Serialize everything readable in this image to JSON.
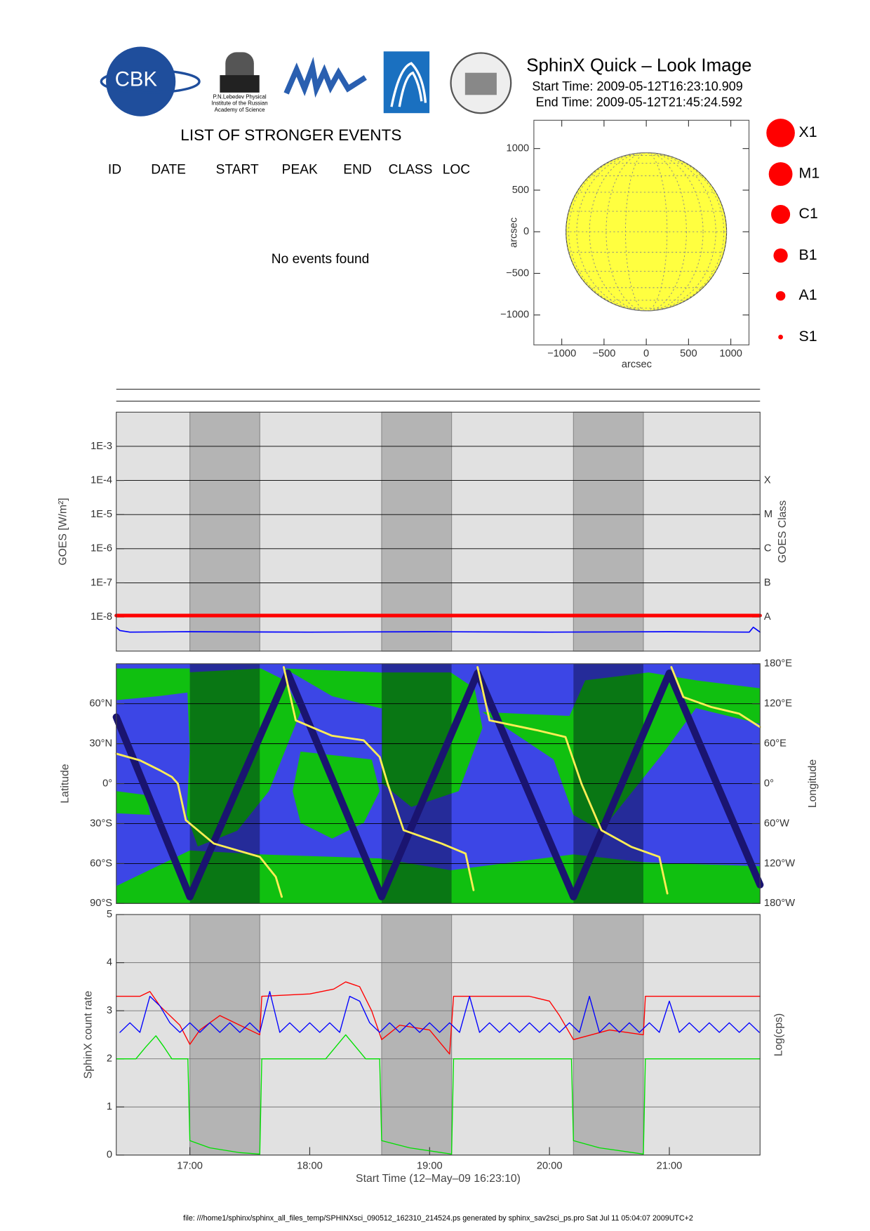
{
  "header": {
    "logo_text": "CBK",
    "institute": [
      "P.N.Lebedev Physical",
      "Institute of the Russian",
      "Academy of Science"
    ],
    "title": "SphinX Quick – Look Image",
    "start_time": "Start Time: 2009-05-12T16:23:10.909",
    "end_time": "End Time: 2009-05-12T21:45:24.592"
  },
  "events": {
    "title": "LIST OF STRONGER EVENTS",
    "columns": [
      "ID",
      "DATE",
      "START",
      "PEAK",
      "END",
      "CLASS",
      "LOC"
    ],
    "message": "No events found"
  },
  "class_legend": [
    "X1",
    "M1",
    "C1",
    "B1",
    "A1",
    "S1"
  ],
  "footer": "file: ///home1/sphinx/sphinx_all_files_temp/SPHINXsci_090512_162310_214524.ps generated by sphinx_sav2sci_ps.pro Sat Jul 11 05:04:07 2009UTC+2",
  "chart_data": [
    {
      "type": "disk",
      "xlabel": "arcsec",
      "ylabel": "arcsec",
      "color": "#ffff40",
      "radius": 950,
      "xlim": [
        -1330,
        1215
      ],
      "ylim": [
        -1360,
        1340
      ],
      "xticks": [
        {
          "value": -1000,
          "label": "−1000"
        },
        {
          "value": -500,
          "label": "−500"
        },
        0,
        500,
        1000
      ],
      "yticks": [
        {
          "value": -1000,
          "label": "−1000"
        },
        {
          "value": -500,
          "label": "−500"
        },
        0,
        500,
        1000
      ]
    },
    {
      "type": "line",
      "ylog": true,
      "ylabel": "GOES [W/m²]",
      "y2label": "GOES Class",
      "xlim": [
        "16:23:10",
        "21:45:24"
      ],
      "ylim": [
        1e-09,
        0.01
      ],
      "y2lim": [
        1e-09,
        0.01
      ],
      "grid": true,
      "yticks": [
        {
          "value": 1e-08,
          "label": "1E-8"
        },
        {
          "value": 1e-07,
          "label": "1E-7"
        },
        {
          "value": 1e-06,
          "label": "1E-6"
        },
        {
          "value": 1e-05,
          "label": "1E-5"
        },
        {
          "value": 0.0001,
          "label": "1E-4"
        },
        {
          "value": 0.001,
          "label": "1E-3"
        }
      ],
      "y2ticks": [
        {
          "value": 1e-08,
          "label": "A"
        },
        {
          "value": 1e-07,
          "label": "B"
        },
        {
          "value": 1e-06,
          "label": "C"
        },
        {
          "value": 1e-05,
          "label": "M"
        },
        {
          "value": 0.0001,
          "label": "X"
        }
      ],
      "eclipses": [
        [
          "17:00",
          "17:35"
        ],
        [
          "18:36",
          "19:11"
        ],
        [
          "20:12",
          "20:47"
        ]
      ],
      "series": [
        {
          "color": "#ff0000",
          "x": [
            "16:23:10",
            "21:45:24"
          ],
          "values": [
            1.1e-08,
            1.1e-08
          ]
        },
        {
          "color": "#0000ff",
          "x": [
            "16:23:10",
            "16:25",
            "16:30",
            "17:00",
            "18:00",
            "19:00",
            "20:00",
            "21:00",
            "21:40",
            "21:42",
            "21:45:24"
          ],
          "values": [
            5e-09,
            4e-09,
            3.6e-09,
            3.7e-09,
            3.6e-09,
            3.7e-09,
            3.6e-09,
            3.7e-09,
            3.6e-09,
            5e-09,
            3.6e-09
          ]
        }
      ]
    },
    {
      "type": "map",
      "ylabel": "Latitude",
      "y2label": "Longitude",
      "xlim": [
        "16:23:10",
        "21:45:24"
      ],
      "ylim": [
        -90,
        90
      ],
      "y2lim": [
        -180,
        180
      ],
      "grid": true,
      "yticks": [
        {
          "value": -90,
          "label": "90°S"
        },
        {
          "value": -60,
          "label": "60°S"
        },
        {
          "value": -30,
          "label": "30°S"
        },
        {
          "value": 0,
          "label": "0°"
        },
        {
          "value": 30,
          "label": "30°N"
        },
        {
          "value": 60,
          "label": "60°N"
        }
      ],
      "y2ticks": [
        {
          "value": -180,
          "label": "180°W"
        },
        {
          "value": -120,
          "label": "120°W"
        },
        {
          "value": -60,
          "label": "60°W"
        },
        {
          "value": 0,
          "label": "0°"
        },
        {
          "value": 60,
          "label": "60°E"
        },
        {
          "value": 120,
          "label": "120°E"
        },
        {
          "value": 180,
          "label": "180°E"
        }
      ],
      "eclipses": [
        [
          "17:00",
          "17:35"
        ],
        [
          "18:36",
          "19:11"
        ],
        [
          "20:12",
          "20:47"
        ]
      ],
      "series": [
        {
          "color": "#1a1470",
          "x": [
            "16:23:10",
            "17:00",
            "17:49",
            "18:36",
            "19:24",
            "20:12",
            "21:00",
            "21:45:24"
          ],
          "values": [
            50,
            -85,
            83,
            -85,
            83,
            -85,
            83,
            -76
          ]
        },
        {
          "color": "#ffee55",
          "axis": "y2",
          "x": [
            "16:23:10",
            "16:35",
            "16:45",
            "16:51",
            "16:54",
            "16:58",
            "17:12",
            "17:35",
            "17:43",
            "17:46",
            "17:46:30",
            "17:47",
            "17:53",
            "18:11",
            "18:27",
            "18:35",
            "18:39",
            "18:47",
            "19:06",
            "19:18",
            "19:22",
            "19:23",
            "19:24",
            "19:30",
            "19:54",
            "20:08",
            "20:16",
            "20:26",
            "20:41",
            "20:55",
            "20:59",
            "21:00",
            "21:01",
            "21:07",
            "21:21",
            "21:35",
            "21:45:24"
          ],
          "values": [
            45,
            35,
            20,
            10,
            0,
            -55,
            -90,
            -110,
            -140,
            -170,
            null,
            175,
            95,
            72,
            65,
            40,
            0,
            -70,
            -90,
            -105,
            -160,
            null,
            175,
            95,
            80,
            70,
            0,
            -70,
            -95,
            -110,
            -165,
            null,
            175,
            130,
            115,
            105,
            85
          ]
        }
      ]
    },
    {
      "type": "line",
      "ylabel": "SphinX count rate",
      "y2label": "Log(cps)",
      "xlabel": "Start Time (12–May–09 16:23:10)",
      "xlim": [
        "16:23:10",
        "21:45:24"
      ],
      "ylim": [
        0,
        5
      ],
      "grid": true,
      "yticks": [
        0,
        1,
        2,
        3,
        4,
        5
      ],
      "xticks": [
        "17:00",
        "18:00",
        "19:00",
        "20:00",
        "21:00"
      ],
      "eclipses": [
        [
          "17:00",
          "17:35"
        ],
        [
          "18:36",
          "19:11"
        ],
        [
          "20:12",
          "20:47"
        ]
      ],
      "series": [
        {
          "color": "#ff0000",
          "x": [
            "16:23:10",
            "16:35",
            "16:40",
            "16:45",
            "16:55",
            "17:00",
            "17:05",
            "17:15",
            "17:25",
            "17:35",
            "17:36",
            "18:00",
            "18:12",
            "18:18",
            "18:25",
            "18:31",
            "18:36",
            "18:45",
            "19:00",
            "19:10",
            "19:12",
            "19:50",
            "20:00",
            "20:05",
            "20:12",
            "20:30",
            "20:47",
            "20:48",
            "21:45:24"
          ],
          "values": [
            3.3,
            3.3,
            3.4,
            3.1,
            2.7,
            2.3,
            2.6,
            2.9,
            2.7,
            2.5,
            3.3,
            3.35,
            3.45,
            3.6,
            3.5,
            3.0,
            2.4,
            2.7,
            2.6,
            2.1,
            3.3,
            3.3,
            3.2,
            2.9,
            2.4,
            2.6,
            2.5,
            3.3,
            3.3
          ]
        },
        {
          "color": "#0000ff",
          "x": [
            "16:25",
            "16:30",
            "16:35",
            "16:40",
            "16:45",
            "16:50",
            "16:55",
            "17:00",
            "17:05",
            "17:10",
            "17:15",
            "17:20",
            "17:25",
            "17:30",
            "17:35",
            "17:40",
            "17:45",
            "17:50",
            "17:55",
            "18:00",
            "18:05",
            "18:10",
            "18:15",
            "18:20",
            "18:25",
            "18:30",
            "18:35",
            "18:40",
            "18:45",
            "18:50",
            "18:55",
            "19:00",
            "19:05",
            "19:10",
            "19:15",
            "19:20",
            "19:25",
            "19:30",
            "19:35",
            "19:40",
            "19:45",
            "19:50",
            "19:55",
            "20:00",
            "20:05",
            "20:10",
            "20:15",
            "20:20",
            "20:25",
            "20:30",
            "20:35",
            "20:40",
            "20:45",
            "20:50",
            "20:55",
            "21:00",
            "21:05",
            "21:10",
            "21:15",
            "21:20",
            "21:25",
            "21:30",
            "21:35",
            "21:40",
            "21:45"
          ],
          "values": [
            2.55,
            2.75,
            2.55,
            3.3,
            3.1,
            2.75,
            2.55,
            2.75,
            2.55,
            2.75,
            2.55,
            2.75,
            2.55,
            2.75,
            2.55,
            3.4,
            2.55,
            2.75,
            2.55,
            2.75,
            2.55,
            2.75,
            2.55,
            3.3,
            3.2,
            2.75,
            2.55,
            2.75,
            2.55,
            2.75,
            2.55,
            2.75,
            2.55,
            2.75,
            2.55,
            3.3,
            2.55,
            2.75,
            2.55,
            2.75,
            2.55,
            2.75,
            2.55,
            2.75,
            2.55,
            2.75,
            2.55,
            3.3,
            2.55,
            2.75,
            2.55,
            2.75,
            2.55,
            2.75,
            2.55,
            3.2,
            2.55,
            2.75,
            2.55,
            2.75,
            2.55,
            2.75,
            2.55,
            2.75,
            2.55
          ]
        },
        {
          "color": "#00e000",
          "x": [
            "16:23:10",
            "16:33",
            "16:38",
            "16:43",
            "16:47",
            "16:51",
            "16:59",
            "17:00",
            "17:10",
            "17:25",
            "17:35",
            "17:36",
            "18:08",
            "18:13",
            "18:18",
            "18:23",
            "18:28",
            "18:35",
            "18:36",
            "18:50",
            "19:11",
            "19:12",
            "20:11",
            "20:12",
            "20:25",
            "20:47",
            "20:48",
            "21:45:24"
          ],
          "values": [
            2.0,
            2.0,
            2.25,
            2.48,
            2.25,
            2.0,
            2.0,
            0.3,
            0.15,
            0.05,
            0.02,
            2.0,
            2.0,
            2.25,
            2.5,
            2.25,
            2.0,
            2.0,
            0.3,
            0.15,
            0.02,
            2.0,
            2.0,
            0.3,
            0.15,
            0.02,
            2.0,
            2.0
          ]
        }
      ]
    }
  ]
}
